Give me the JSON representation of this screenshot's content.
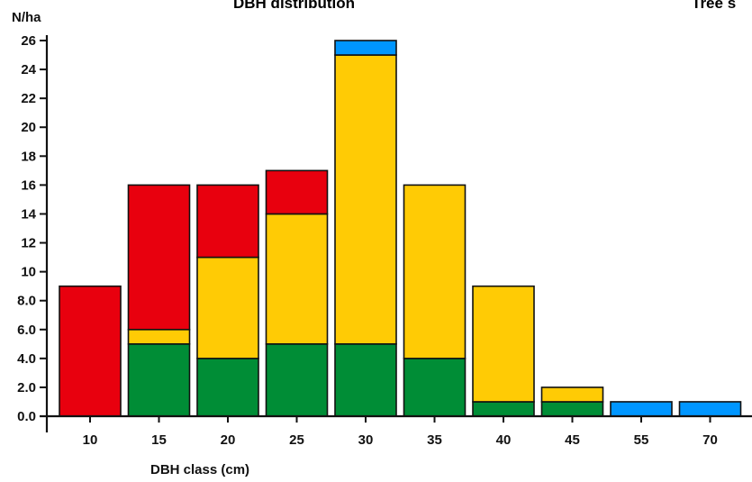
{
  "chart_data": {
    "type": "bar",
    "stacked": true,
    "title": "DBH distribution",
    "side_title": "Tree s",
    "y_unit_label": "N/ha",
    "xlabel": "DBH class (cm)",
    "categories": [
      "10",
      "15",
      "20",
      "25",
      "30",
      "35",
      "40",
      "45",
      "55",
      "70"
    ],
    "y_ticks": [
      "0.0",
      "2.0",
      "4.0",
      "6.0",
      "8.0",
      "10",
      "12",
      "14",
      "16",
      "18",
      "20",
      "22",
      "24",
      "26"
    ],
    "ylim": [
      0,
      26
    ],
    "grid": false,
    "series": [
      {
        "color": "#008d36",
        "values": [
          0,
          5,
          4,
          5,
          5,
          4,
          1,
          1,
          0,
          0
        ]
      },
      {
        "color": "#ffcb05",
        "values": [
          0,
          1,
          7,
          9,
          20,
          12,
          8,
          1,
          0,
          0
        ]
      },
      {
        "color": "#e8000e",
        "values": [
          9,
          10,
          5,
          3,
          0,
          0,
          0,
          0,
          0,
          0
        ]
      },
      {
        "color": "#0096ff",
        "values": [
          0,
          0,
          0,
          0,
          1,
          0,
          0,
          0,
          1,
          1
        ]
      }
    ]
  }
}
